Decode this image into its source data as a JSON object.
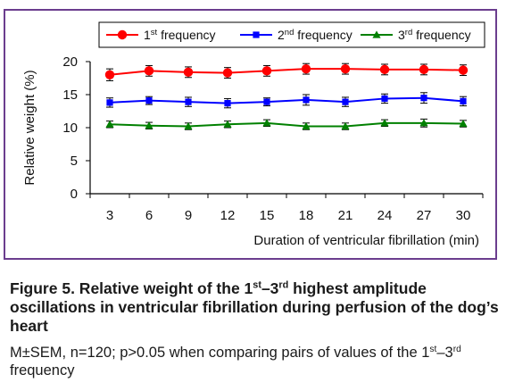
{
  "chart_data": {
    "type": "line",
    "categories": [
      3,
      6,
      9,
      12,
      15,
      18,
      21,
      24,
      27,
      30
    ],
    "xlabel": "Duration of ventricular fibrillation (min)",
    "ylabel": "Relative weight (%)",
    "ylim": [
      0,
      20
    ],
    "yticks": [
      0,
      5,
      10,
      15,
      20
    ],
    "grid": false,
    "legend_position": "top",
    "error_bars": true,
    "series": [
      {
        "name": "1st frequency",
        "legend_base": "1",
        "legend_sup": "st",
        "legend_rest": " frequency",
        "color": "#ff0000",
        "marker": "circle",
        "values": [
          18.0,
          18.6,
          18.4,
          18.3,
          18.6,
          18.9,
          18.9,
          18.8,
          18.8,
          18.7
        ],
        "errors": [
          0.9,
          0.8,
          0.8,
          0.8,
          0.8,
          0.8,
          0.8,
          0.8,
          0.8,
          0.8
        ]
      },
      {
        "name": "2nd frequency",
        "legend_base": "2",
        "legend_sup": "nd",
        "legend_rest": " frequency",
        "color": "#0000ff",
        "marker": "square",
        "values": [
          13.8,
          14.1,
          13.9,
          13.7,
          13.9,
          14.2,
          13.9,
          14.4,
          14.5,
          14.0
        ],
        "errors": [
          0.7,
          0.6,
          0.7,
          0.7,
          0.6,
          0.8,
          0.7,
          0.7,
          0.8,
          0.7
        ]
      },
      {
        "name": "3rd frequency",
        "legend_base": "3",
        "legend_sup": "rd",
        "legend_rest": " frequency",
        "color": "#008000",
        "marker": "triangle",
        "values": [
          10.5,
          10.3,
          10.2,
          10.5,
          10.7,
          10.2,
          10.2,
          10.7,
          10.7,
          10.6
        ],
        "errors": [
          0.5,
          0.5,
          0.5,
          0.5,
          0.5,
          0.5,
          0.5,
          0.5,
          0.6,
          0.5
        ]
      }
    ]
  },
  "caption": {
    "fig_label": "Figure 5.",
    "title_part1": " Relative weight of the 1",
    "title_sup1": "st",
    "title_dash": "–3",
    "title_sup2": "rd",
    "title_part2": " highest amplitude oscillations in ventricular fibrillation during perfusion of the dog’s heart",
    "note_part1": "M±SEM, n=120; p>0.05 when comparing pairs of values of the 1",
    "note_sup1": "st",
    "note_dash": "–3",
    "note_sup2": "rd",
    "note_part2": " frequency"
  }
}
